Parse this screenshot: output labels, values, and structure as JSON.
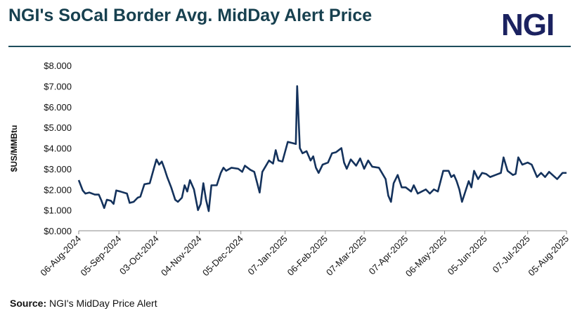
{
  "logo": "NGI",
  "source": {
    "label": "Source:",
    "text": "NGI's MidDay Price Alert"
  },
  "chart_data": {
    "type": "line",
    "title": "NGI's SoCal Border Avg. MidDay Alert Price",
    "y_label": "$US/MMBtu",
    "x": [
      "2024-08-06",
      "2024-08-09",
      "2024-08-11",
      "2024-08-14",
      "2024-08-18",
      "2024-08-21",
      "2024-08-23",
      "2024-08-25",
      "2024-08-27",
      "2024-08-30",
      "2024-09-01",
      "2024-09-03",
      "2024-09-06",
      "2024-09-11",
      "2024-09-13",
      "2024-09-16",
      "2024-09-19",
      "2024-09-21",
      "2024-09-24",
      "2024-09-28",
      "2024-10-01",
      "2024-10-03",
      "2024-10-05",
      "2024-10-07",
      "2024-10-09",
      "2024-10-11",
      "2024-10-14",
      "2024-10-17",
      "2024-10-19",
      "2024-10-22",
      "2024-10-24",
      "2024-10-26",
      "2024-10-28",
      "2024-10-31",
      "2024-11-03",
      "2024-11-05",
      "2024-11-07",
      "2024-11-09",
      "2024-11-11",
      "2024-11-13",
      "2024-11-17",
      "2024-11-20",
      "2024-11-22",
      "2024-11-24",
      "2024-11-28",
      "2024-12-03",
      "2024-12-06",
      "2024-12-08",
      "2024-12-12",
      "2024-12-15",
      "2024-12-17",
      "2024-12-19",
      "2024-12-21",
      "2024-12-26",
      "2024-12-29",
      "2024-12-31",
      "2025-01-02",
      "2025-01-05",
      "2025-01-09",
      "2025-01-12",
      "2025-01-15",
      "2025-01-16",
      "2025-01-18",
      "2025-01-20",
      "2025-01-23",
      "2025-01-26",
      "2025-01-28",
      "2025-01-30",
      "2025-02-01",
      "2025-02-04",
      "2025-02-08",
      "2025-02-11",
      "2025-02-14",
      "2025-02-16",
      "2025-02-18",
      "2025-02-20",
      "2025-02-22",
      "2025-02-25",
      "2025-03-01",
      "2025-03-04",
      "2025-03-07",
      "2025-03-10",
      "2025-03-13",
      "2025-03-18",
      "2025-03-23",
      "2025-03-25",
      "2025-03-27",
      "2025-03-29",
      "2025-04-01",
      "2025-04-04",
      "2025-04-07",
      "2025-04-11",
      "2025-04-13",
      "2025-04-16",
      "2025-04-19",
      "2025-04-22",
      "2025-04-25",
      "2025-04-28",
      "2025-05-01",
      "2025-05-05",
      "2025-05-09",
      "2025-05-11",
      "2025-05-13",
      "2025-05-15",
      "2025-05-17",
      "2025-05-19",
      "2025-05-21",
      "2025-05-24",
      "2025-05-26",
      "2025-05-28",
      "2025-05-31",
      "2025-06-03",
      "2025-06-06",
      "2025-06-09",
      "2025-06-13",
      "2025-06-17",
      "2025-06-19",
      "2025-06-22",
      "2025-06-26",
      "2025-06-28",
      "2025-06-30",
      "2025-07-03",
      "2025-07-07",
      "2025-07-10",
      "2025-07-14",
      "2025-07-17",
      "2025-07-20",
      "2025-07-23",
      "2025-07-29",
      "2025-08-02",
      "2025-08-05"
    ],
    "series": [
      {
        "name": "SoCal Border Avg.",
        "color": "#14325c",
        "values": [
          2.45,
          1.95,
          1.8,
          1.85,
          1.75,
          1.75,
          1.45,
          1.1,
          1.5,
          1.45,
          1.3,
          1.95,
          1.9,
          1.8,
          1.35,
          1.4,
          1.6,
          1.65,
          2.25,
          2.3,
          3.0,
          3.45,
          3.2,
          3.35,
          3.0,
          2.6,
          2.1,
          1.5,
          1.4,
          1.6,
          2.2,
          1.9,
          2.45,
          2.0,
          1.0,
          1.3,
          2.3,
          1.5,
          0.95,
          2.2,
          2.2,
          2.8,
          3.05,
          2.9,
          3.05,
          3.0,
          2.85,
          3.15,
          2.95,
          2.85,
          2.35,
          1.85,
          2.85,
          3.4,
          3.25,
          3.9,
          3.4,
          3.35,
          4.3,
          4.25,
          4.2,
          7.0,
          4.0,
          3.75,
          3.85,
          3.4,
          3.6,
          3.05,
          2.8,
          3.2,
          3.3,
          3.75,
          3.8,
          3.9,
          4.0,
          3.3,
          3.0,
          3.45,
          3.15,
          3.5,
          3.0,
          3.4,
          3.1,
          3.05,
          2.5,
          1.7,
          1.4,
          2.3,
          2.7,
          2.1,
          2.1,
          1.9,
          2.2,
          1.8,
          1.9,
          2.0,
          1.8,
          2.0,
          1.9,
          2.9,
          2.9,
          2.6,
          2.7,
          2.4,
          2.0,
          1.4,
          1.8,
          2.4,
          2.1,
          2.9,
          2.5,
          2.8,
          2.75,
          2.6,
          2.7,
          2.8,
          3.55,
          2.9,
          2.7,
          2.75,
          3.55,
          3.2,
          3.3,
          3.2,
          2.6,
          2.8,
          2.6,
          2.85,
          2.5,
          2.8,
          2.8
        ]
      }
    ],
    "xlim": [
      "2024-08-06",
      "2025-08-05"
    ],
    "xticks": [
      {
        "value": "2024-08-06",
        "label": "06-Aug-2024"
      },
      {
        "value": "2024-09-05",
        "label": "05-Sep-2024"
      },
      {
        "value": "2024-10-03",
        "label": "03-Oct-2024"
      },
      {
        "value": "2024-11-04",
        "label": "04-Nov-2024"
      },
      {
        "value": "2024-12-05",
        "label": "05-Dec-2024"
      },
      {
        "value": "2025-01-07",
        "label": "07-Jan-2025"
      },
      {
        "value": "2025-02-06",
        "label": "06-Feb-2025"
      },
      {
        "value": "2025-03-07",
        "label": "07-Mar-2025"
      },
      {
        "value": "2025-04-07",
        "label": "07-Apr-2025"
      },
      {
        "value": "2025-05-06",
        "label": "06-May-2025"
      },
      {
        "value": "2025-06-05",
        "label": "05-Jun-2025"
      },
      {
        "value": "2025-07-07",
        "label": "07-Jul-2025"
      },
      {
        "value": "2025-08-05",
        "label": "05-Aug-2025"
      }
    ],
    "ylim": [
      0,
      8
    ],
    "yticks": [
      {
        "value": 0,
        "label": "$0.000"
      },
      {
        "value": 1,
        "label": "$1.000"
      },
      {
        "value": 2,
        "label": "$2.000"
      },
      {
        "value": 3,
        "label": "$3.000"
      },
      {
        "value": 4,
        "label": "$4.000"
      },
      {
        "value": 5,
        "label": "$5.000"
      },
      {
        "value": 6,
        "label": "$6.000"
      },
      {
        "value": 7,
        "label": "$7.000"
      },
      {
        "value": 8,
        "label": "$8.000"
      }
    ],
    "grid": false
  }
}
